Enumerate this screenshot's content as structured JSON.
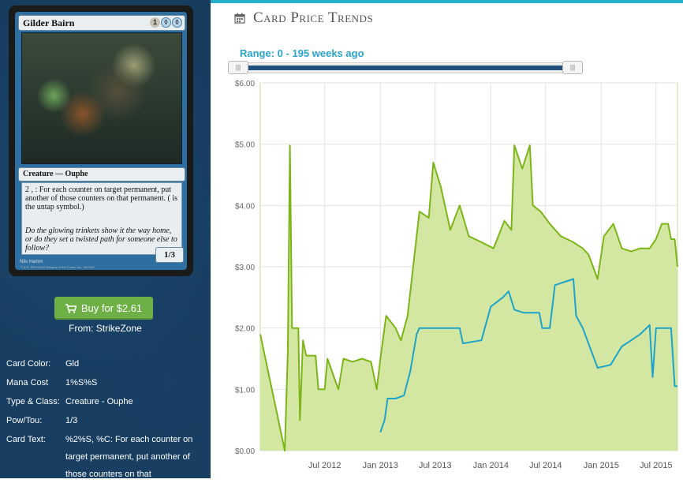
{
  "card": {
    "name": "Gilder Bairn",
    "cost_pips": [
      "1",
      "S",
      "S"
    ],
    "type_line": "Creature — Ouphe",
    "rules_text": "2 , : For each counter on target permanent, put another of those counters on that permanent. ( is the untap symbol.)",
    "flavor_text": "Do the glowing trinkets show it the way home, or do they set a twisted path for someone else to follow?",
    "power_toughness": "1/3",
    "artist": "Nils Hamm",
    "copyright": "™ & © 1993-2008 Wizards of the Coast, Inc. 152/180"
  },
  "buy": {
    "label": "Buy for $2.61",
    "from": "From: StrikeZone",
    "color": "#6db046"
  },
  "info": [
    {
      "label": "Card Color:",
      "value": "Gld"
    },
    {
      "label": "Mana Cost",
      "value": "1%S%S"
    },
    {
      "label": "Type & Class:",
      "value": "Creature - Ouphe"
    },
    {
      "label": "Pow/Tou:",
      "value": "1/3"
    },
    {
      "label": "Card Text:",
      "value": "%2%S, %C: For each counter on target permanent, put another of those counters on that"
    }
  ],
  "header": {
    "title": "Card Price Trends",
    "icon": "calendar-icon",
    "accent": "#24b0c9"
  },
  "range": {
    "label": "Range: 0 - 195 weeks ago",
    "handle_symbol": "|||"
  },
  "chart_data": {
    "type": "area",
    "x_tick_labels": [
      "Jul 2012",
      "Jan 2013",
      "Jul 2013",
      "Jan 2014",
      "Jul 2014",
      "Jan 2015",
      "Jul 2015"
    ],
    "y_tick_labels": [
      "$0.00",
      "$1.00",
      "$2.00",
      "$3.00",
      "$4.00",
      "$5.00",
      "$6.00"
    ],
    "ylim": [
      0,
      6
    ],
    "xlim": [
      "2011-12-01",
      "2015-09-10"
    ],
    "grid": true,
    "series": [
      {
        "color": "#7cb518",
        "fill": "#d3e7a3",
        "points": [
          [
            "2011-12-01",
            1.9
          ],
          [
            "2012-02-20",
            0.0
          ],
          [
            "2012-03-01",
            1.6
          ],
          [
            "2012-03-08",
            4.98
          ],
          [
            "2012-03-15",
            2.0
          ],
          [
            "2012-04-05",
            2.0
          ],
          [
            "2012-04-10",
            0.5
          ],
          [
            "2012-04-20",
            1.8
          ],
          [
            "2012-05-01",
            1.55
          ],
          [
            "2012-06-01",
            1.55
          ],
          [
            "2012-06-10",
            1.0
          ],
          [
            "2012-07-01",
            1.0
          ],
          [
            "2012-07-10",
            1.5
          ],
          [
            "2012-08-15",
            1.0
          ],
          [
            "2012-09-01",
            1.5
          ],
          [
            "2012-10-01",
            1.45
          ],
          [
            "2012-11-01",
            1.5
          ],
          [
            "2012-12-01",
            1.45
          ],
          [
            "2012-12-20",
            1.0
          ],
          [
            "2013-01-01",
            1.5
          ],
          [
            "2013-01-20",
            2.2
          ],
          [
            "2013-02-20",
            2.0
          ],
          [
            "2013-03-10",
            1.8
          ],
          [
            "2013-04-01",
            2.2
          ],
          [
            "2013-05-10",
            3.9
          ],
          [
            "2013-06-10",
            3.8
          ],
          [
            "2013-06-25",
            4.7
          ],
          [
            "2013-07-20",
            4.3
          ],
          [
            "2013-08-20",
            3.6
          ],
          [
            "2013-09-20",
            4.0
          ],
          [
            "2013-10-20",
            3.5
          ],
          [
            "2013-12-01",
            3.4
          ],
          [
            "2014-01-10",
            3.3
          ],
          [
            "2014-02-15",
            3.75
          ],
          [
            "2014-03-10",
            3.6
          ],
          [
            "2014-03-20",
            4.98
          ],
          [
            "2014-04-15",
            4.6
          ],
          [
            "2014-05-10",
            4.98
          ],
          [
            "2014-05-20",
            4.0
          ],
          [
            "2014-06-15",
            3.9
          ],
          [
            "2014-07-15",
            3.7
          ],
          [
            "2014-08-20",
            3.5
          ],
          [
            "2014-10-01",
            3.4
          ],
          [
            "2014-11-01",
            3.3
          ],
          [
            "2014-11-20",
            3.2
          ],
          [
            "2014-12-20",
            2.8
          ],
          [
            "2015-01-10",
            3.5
          ],
          [
            "2015-02-10",
            3.7
          ],
          [
            "2015-03-10",
            3.3
          ],
          [
            "2015-04-10",
            3.25
          ],
          [
            "2015-05-10",
            3.3
          ],
          [
            "2015-06-10",
            3.3
          ],
          [
            "2015-07-01",
            3.45
          ],
          [
            "2015-07-20",
            3.7
          ],
          [
            "2015-08-10",
            3.7
          ],
          [
            "2015-08-20",
            3.45
          ],
          [
            "2015-09-01",
            3.45
          ],
          [
            "2015-09-10",
            3.0
          ]
        ]
      },
      {
        "color": "#1ea3c9",
        "fill": "none",
        "points": [
          [
            "2013-01-01",
            0.3
          ],
          [
            "2013-01-15",
            0.5
          ],
          [
            "2013-01-25",
            0.85
          ],
          [
            "2013-02-20",
            0.85
          ],
          [
            "2013-03-20",
            0.9
          ],
          [
            "2013-04-10",
            1.3
          ],
          [
            "2013-05-01",
            1.9
          ],
          [
            "2013-05-10",
            2.0
          ],
          [
            "2013-09-20",
            2.0
          ],
          [
            "2013-10-01",
            1.75
          ],
          [
            "2013-12-01",
            1.8
          ],
          [
            "2014-01-01",
            2.35
          ],
          [
            "2014-02-10",
            2.5
          ],
          [
            "2014-03-01",
            2.6
          ],
          [
            "2014-03-20",
            2.3
          ],
          [
            "2014-04-20",
            2.25
          ],
          [
            "2014-06-10",
            2.25
          ],
          [
            "2014-06-20",
            2.0
          ],
          [
            "2014-07-15",
            2.0
          ],
          [
            "2014-08-01",
            2.7
          ],
          [
            "2014-10-01",
            2.8
          ],
          [
            "2014-10-10",
            2.2
          ],
          [
            "2014-11-01",
            2.0
          ],
          [
            "2014-12-20",
            1.35
          ],
          [
            "2015-02-01",
            1.4
          ],
          [
            "2015-03-10",
            1.7
          ],
          [
            "2015-04-10",
            1.8
          ],
          [
            "2015-05-10",
            1.9
          ],
          [
            "2015-06-10",
            2.05
          ],
          [
            "2015-06-20",
            1.2
          ],
          [
            "2015-07-01",
            2.0
          ],
          [
            "2015-08-20",
            2.0
          ],
          [
            "2015-09-01",
            1.05
          ],
          [
            "2015-09-10",
            1.05
          ]
        ]
      }
    ]
  }
}
